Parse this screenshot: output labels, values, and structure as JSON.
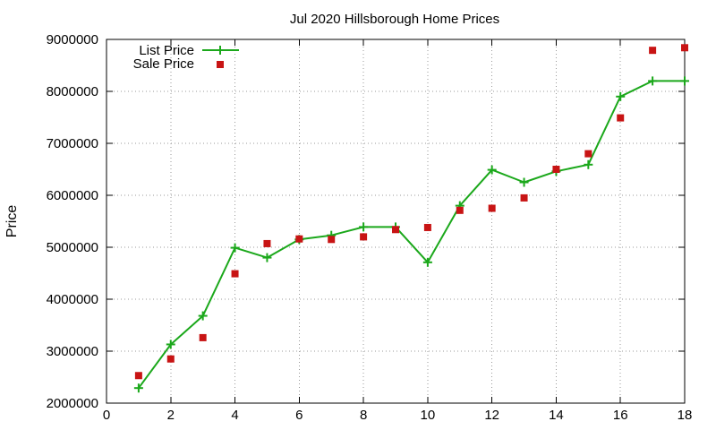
{
  "chart_data": {
    "type": "line",
    "title": "Jul 2020 Hillsborough Home Prices",
    "xlabel": "",
    "ylabel": "Price",
    "xlim": [
      0,
      18
    ],
    "ylim": [
      2000000,
      9000000
    ],
    "x_ticks": [
      0,
      2,
      4,
      6,
      8,
      10,
      12,
      14,
      16,
      18
    ],
    "y_ticks": [
      2000000,
      3000000,
      4000000,
      5000000,
      6000000,
      7000000,
      8000000,
      9000000
    ],
    "grid": true,
    "legend_position": "top-left",
    "series": [
      {
        "name": "List Price",
        "kind": "line-points",
        "color": "#1ba81b",
        "marker": "plus",
        "x": [
          1,
          2,
          3,
          4,
          5,
          6,
          7,
          8,
          9,
          10,
          11,
          12,
          13,
          14,
          15,
          16,
          17,
          18
        ],
        "values": [
          2290000,
          3130000,
          3680000,
          4990000,
          4800000,
          5150000,
          5230000,
          5390000,
          5390000,
          4710000,
          5800000,
          6490000,
          6250000,
          6460000,
          6590000,
          7900000,
          8200000,
          8200000
        ]
      },
      {
        "name": "Sale Price",
        "kind": "points",
        "color": "#c81414",
        "marker": "square",
        "x": [
          1,
          2,
          3,
          4,
          5,
          6,
          7,
          8,
          9,
          10,
          11,
          12,
          13,
          14,
          15,
          16,
          17,
          18
        ],
        "values": [
          2530000,
          2850000,
          3260000,
          4490000,
          5070000,
          5160000,
          5150000,
          5200000,
          5340000,
          5380000,
          5710000,
          5750000,
          5950000,
          6500000,
          6800000,
          7490000,
          8790000,
          8840000
        ]
      }
    ]
  }
}
